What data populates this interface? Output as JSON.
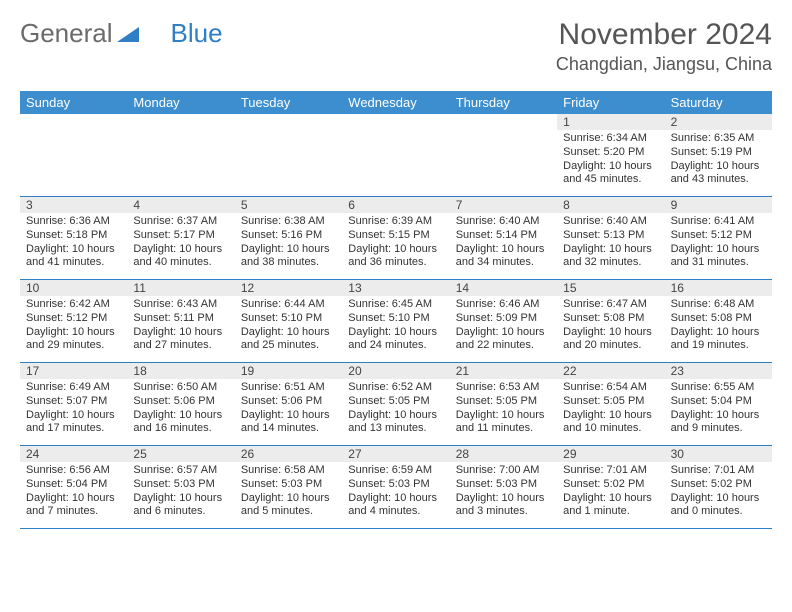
{
  "logo": {
    "part1": "General",
    "part2": "Blue"
  },
  "title": "November 2024",
  "location": "Changdian, Jiangsu, China",
  "colors": {
    "header_bg": "#3d8ecf",
    "row_divider": "#2f7fc6",
    "daynum_bg": "#ececec",
    "text": "#333333",
    "title_text": "#555555",
    "logo_gray": "#6b6b6b",
    "logo_blue": "#2f7fc6"
  },
  "day_headers": [
    "Sunday",
    "Monday",
    "Tuesday",
    "Wednesday",
    "Thursday",
    "Friday",
    "Saturday"
  ],
  "weeks": [
    [
      {
        "n": "",
        "lines": []
      },
      {
        "n": "",
        "lines": []
      },
      {
        "n": "",
        "lines": []
      },
      {
        "n": "",
        "lines": []
      },
      {
        "n": "",
        "lines": []
      },
      {
        "n": "1",
        "lines": [
          "Sunrise: 6:34 AM",
          "Sunset: 5:20 PM",
          "Daylight: 10 hours and 45 minutes."
        ]
      },
      {
        "n": "2",
        "lines": [
          "Sunrise: 6:35 AM",
          "Sunset: 5:19 PM",
          "Daylight: 10 hours and 43 minutes."
        ]
      }
    ],
    [
      {
        "n": "3",
        "lines": [
          "Sunrise: 6:36 AM",
          "Sunset: 5:18 PM",
          "Daylight: 10 hours and 41 minutes."
        ]
      },
      {
        "n": "4",
        "lines": [
          "Sunrise: 6:37 AM",
          "Sunset: 5:17 PM",
          "Daylight: 10 hours and 40 minutes."
        ]
      },
      {
        "n": "5",
        "lines": [
          "Sunrise: 6:38 AM",
          "Sunset: 5:16 PM",
          "Daylight: 10 hours and 38 minutes."
        ]
      },
      {
        "n": "6",
        "lines": [
          "Sunrise: 6:39 AM",
          "Sunset: 5:15 PM",
          "Daylight: 10 hours and 36 minutes."
        ]
      },
      {
        "n": "7",
        "lines": [
          "Sunrise: 6:40 AM",
          "Sunset: 5:14 PM",
          "Daylight: 10 hours and 34 minutes."
        ]
      },
      {
        "n": "8",
        "lines": [
          "Sunrise: 6:40 AM",
          "Sunset: 5:13 PM",
          "Daylight: 10 hours and 32 minutes."
        ]
      },
      {
        "n": "9",
        "lines": [
          "Sunrise: 6:41 AM",
          "Sunset: 5:12 PM",
          "Daylight: 10 hours and 31 minutes."
        ]
      }
    ],
    [
      {
        "n": "10",
        "lines": [
          "Sunrise: 6:42 AM",
          "Sunset: 5:12 PM",
          "Daylight: 10 hours and 29 minutes."
        ]
      },
      {
        "n": "11",
        "lines": [
          "Sunrise: 6:43 AM",
          "Sunset: 5:11 PM",
          "Daylight: 10 hours and 27 minutes."
        ]
      },
      {
        "n": "12",
        "lines": [
          "Sunrise: 6:44 AM",
          "Sunset: 5:10 PM",
          "Daylight: 10 hours and 25 minutes."
        ]
      },
      {
        "n": "13",
        "lines": [
          "Sunrise: 6:45 AM",
          "Sunset: 5:10 PM",
          "Daylight: 10 hours and 24 minutes."
        ]
      },
      {
        "n": "14",
        "lines": [
          "Sunrise: 6:46 AM",
          "Sunset: 5:09 PM",
          "Daylight: 10 hours and 22 minutes."
        ]
      },
      {
        "n": "15",
        "lines": [
          "Sunrise: 6:47 AM",
          "Sunset: 5:08 PM",
          "Daylight: 10 hours and 20 minutes."
        ]
      },
      {
        "n": "16",
        "lines": [
          "Sunrise: 6:48 AM",
          "Sunset: 5:08 PM",
          "Daylight: 10 hours and 19 minutes."
        ]
      }
    ],
    [
      {
        "n": "17",
        "lines": [
          "Sunrise: 6:49 AM",
          "Sunset: 5:07 PM",
          "Daylight: 10 hours and 17 minutes."
        ]
      },
      {
        "n": "18",
        "lines": [
          "Sunrise: 6:50 AM",
          "Sunset: 5:06 PM",
          "Daylight: 10 hours and 16 minutes."
        ]
      },
      {
        "n": "19",
        "lines": [
          "Sunrise: 6:51 AM",
          "Sunset: 5:06 PM",
          "Daylight: 10 hours and 14 minutes."
        ]
      },
      {
        "n": "20",
        "lines": [
          "Sunrise: 6:52 AM",
          "Sunset: 5:05 PM",
          "Daylight: 10 hours and 13 minutes."
        ]
      },
      {
        "n": "21",
        "lines": [
          "Sunrise: 6:53 AM",
          "Sunset: 5:05 PM",
          "Daylight: 10 hours and 11 minutes."
        ]
      },
      {
        "n": "22",
        "lines": [
          "Sunrise: 6:54 AM",
          "Sunset: 5:05 PM",
          "Daylight: 10 hours and 10 minutes."
        ]
      },
      {
        "n": "23",
        "lines": [
          "Sunrise: 6:55 AM",
          "Sunset: 5:04 PM",
          "Daylight: 10 hours and 9 minutes."
        ]
      }
    ],
    [
      {
        "n": "24",
        "lines": [
          "Sunrise: 6:56 AM",
          "Sunset: 5:04 PM",
          "Daylight: 10 hours and 7 minutes."
        ]
      },
      {
        "n": "25",
        "lines": [
          "Sunrise: 6:57 AM",
          "Sunset: 5:03 PM",
          "Daylight: 10 hours and 6 minutes."
        ]
      },
      {
        "n": "26",
        "lines": [
          "Sunrise: 6:58 AM",
          "Sunset: 5:03 PM",
          "Daylight: 10 hours and 5 minutes."
        ]
      },
      {
        "n": "27",
        "lines": [
          "Sunrise: 6:59 AM",
          "Sunset: 5:03 PM",
          "Daylight: 10 hours and 4 minutes."
        ]
      },
      {
        "n": "28",
        "lines": [
          "Sunrise: 7:00 AM",
          "Sunset: 5:03 PM",
          "Daylight: 10 hours and 3 minutes."
        ]
      },
      {
        "n": "29",
        "lines": [
          "Sunrise: 7:01 AM",
          "Sunset: 5:02 PM",
          "Daylight: 10 hours and 1 minute."
        ]
      },
      {
        "n": "30",
        "lines": [
          "Sunrise: 7:01 AM",
          "Sunset: 5:02 PM",
          "Daylight: 10 hours and 0 minutes."
        ]
      }
    ]
  ]
}
